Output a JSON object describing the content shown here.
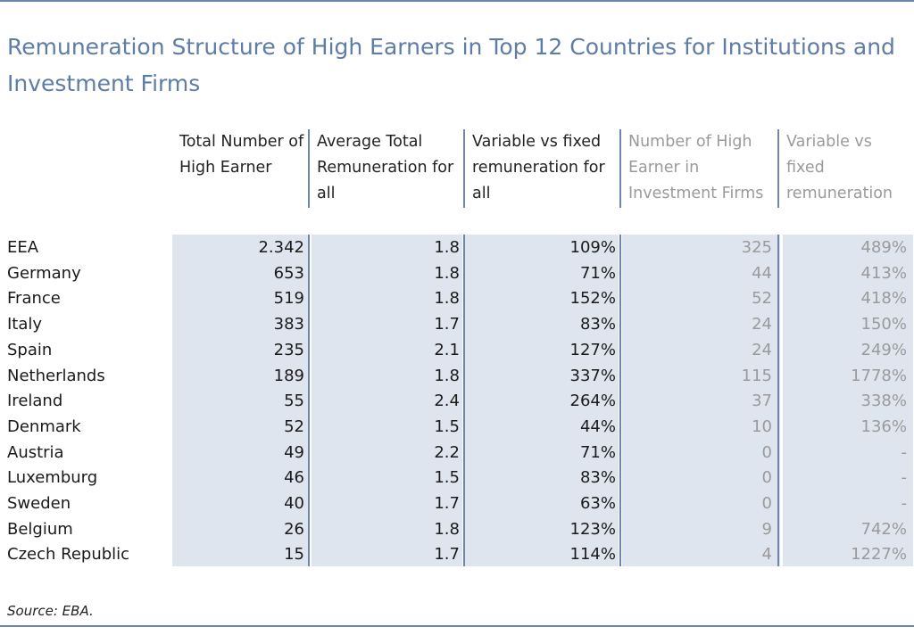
{
  "title": "Remuneration Structure of High Earners in Top 12 Countries for Institutions and Investment Firms",
  "headers": [
    "Total Number of High Earner",
    "Average Total Remuneration for all",
    "Variable vs fixed remuneration for all",
    "Number of High Earner in Investment Firms",
    "Variable vs fixed remuneration"
  ],
  "rows": [
    {
      "country": "EEA",
      "total": "2.342",
      "avg": "1.8",
      "var_all": "109%",
      "inv_firms": "325",
      "var_inv": "489%"
    },
    {
      "country": "Germany",
      "total": "653",
      "avg": "1.8",
      "var_all": "71%",
      "inv_firms": "44",
      "var_inv": "413%"
    },
    {
      "country": "France",
      "total": "519",
      "avg": "1.8",
      "var_all": "152%",
      "inv_firms": "52",
      "var_inv": "418%"
    },
    {
      "country": "Italy",
      "total": "383",
      "avg": "1.7",
      "var_all": "83%",
      "inv_firms": "24",
      "var_inv": "150%"
    },
    {
      "country": "Spain",
      "total": "235",
      "avg": "2.1",
      "var_all": "127%",
      "inv_firms": "24",
      "var_inv": "249%"
    },
    {
      "country": "Netherlands",
      "total": "189",
      "avg": "1.8",
      "var_all": "337%",
      "inv_firms": "115",
      "var_inv": "1778%"
    },
    {
      "country": "Ireland",
      "total": "55",
      "avg": "2.4",
      "var_all": "264%",
      "inv_firms": "37",
      "var_inv": "338%"
    },
    {
      "country": "Denmark",
      "total": "52",
      "avg": "1.5",
      "var_all": "44%",
      "inv_firms": "10",
      "var_inv": "136%"
    },
    {
      "country": "Austria",
      "total": "49",
      "avg": "2.2",
      "var_all": "71%",
      "inv_firms": "0",
      "var_inv": "-"
    },
    {
      "country": "Luxemburg",
      "total": "46",
      "avg": "1.5",
      "var_all": "83%",
      "inv_firms": "0",
      "var_inv": "-"
    },
    {
      "country": "Sweden",
      "total": "40",
      "avg": "1.7",
      "var_all": "63%",
      "inv_firms": "0",
      "var_inv": "-"
    },
    {
      "country": "Belgium",
      "total": "26",
      "avg": "1.8",
      "var_all": "123%",
      "inv_firms": "9",
      "var_inv": "742%"
    },
    {
      "country": "Czech Republic",
      "total": "15",
      "avg": "1.7",
      "var_all": "114%",
      "inv_firms": "4",
      "var_inv": "1227%"
    }
  ],
  "source": "Source: EBA.",
  "colors": {
    "accent": "#5e7ca6",
    "rule": "#6d86ad",
    "band": "#dfe5ef",
    "muted": "#9a9a9a"
  }
}
